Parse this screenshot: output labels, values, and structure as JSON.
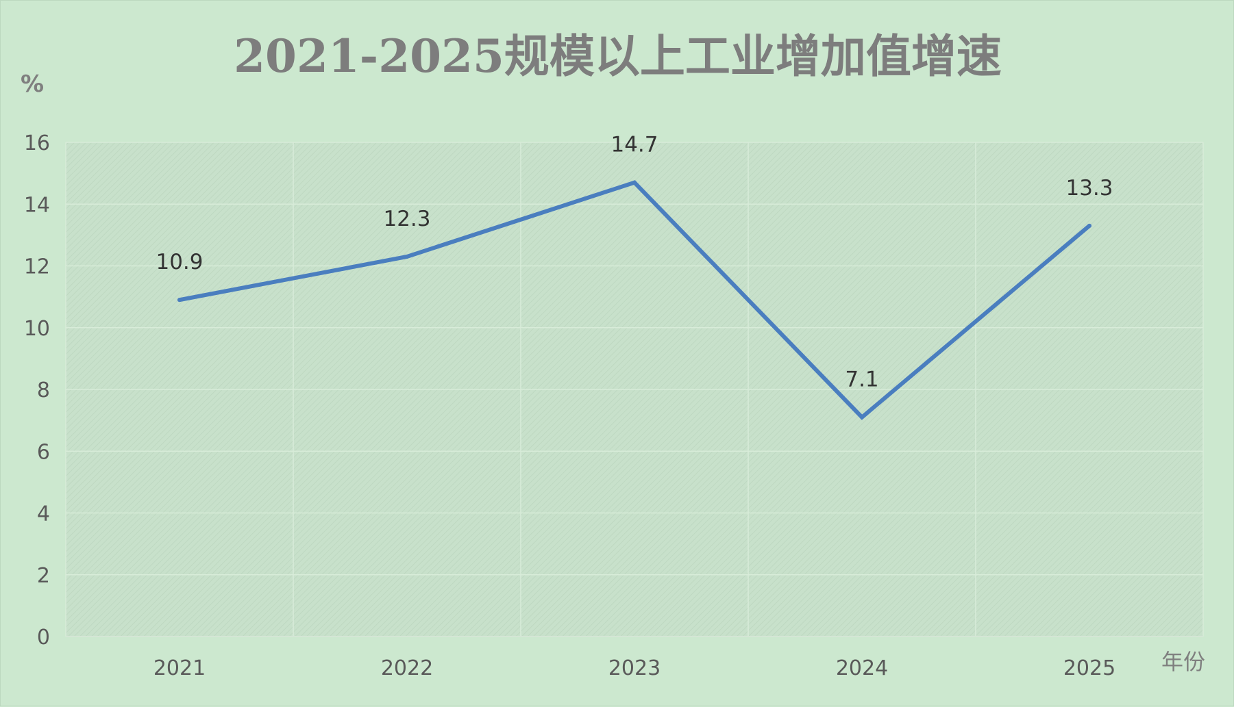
{
  "chart_data": {
    "type": "line",
    "title": "2021-2025规模以上工业增加值增速",
    "ylabel": "%",
    "xlabel": "年份",
    "categories": [
      "2021",
      "2022",
      "2023",
      "2024",
      "2025"
    ],
    "series": [
      {
        "values": [
          10.9,
          12.3,
          14.7,
          7.1,
          13.3
        ]
      }
    ],
    "data_labels": [
      "10.9",
      "12.3",
      "14.7",
      "7.1",
      "13.3"
    ],
    "ylim": [
      0,
      16
    ],
    "yticks": [
      0,
      2,
      4,
      6,
      8,
      10,
      12,
      14,
      16
    ],
    "grid": true,
    "legend": "none",
    "colors": {
      "line": "#4a7ebf",
      "background": "#cce8cf",
      "plot_area": "#c9e2cc",
      "title": "#7d7d7d"
    }
  }
}
